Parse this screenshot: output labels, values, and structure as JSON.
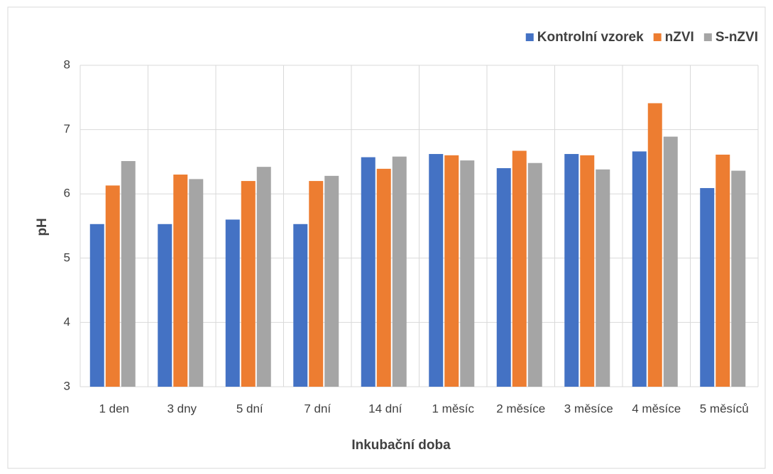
{
  "chart_data": {
    "type": "bar",
    "x_label": "Inkubační doba",
    "y_label": "pH",
    "categories": [
      "1 den",
      "3 dny",
      "5 dní",
      "7 dní",
      "14 dní",
      "1 měsíc",
      "2 měsíce",
      "3 měsíce",
      "4 měsíce",
      "5 měsíců"
    ],
    "series": [
      {
        "name": "Kontrolní vzorek",
        "color": "#4472c4",
        "values": [
          5.53,
          5.53,
          5.6,
          5.53,
          6.57,
          6.62,
          6.4,
          6.62,
          6.66,
          6.09
        ]
      },
      {
        "name": "nZVI",
        "color": "#ed7d31",
        "values": [
          6.13,
          6.3,
          6.2,
          6.2,
          6.39,
          6.6,
          6.67,
          6.6,
          7.41,
          6.61
        ]
      },
      {
        "name": "S-nZVI",
        "color": "#a5a5a5",
        "values": [
          6.51,
          6.23,
          6.42,
          6.28,
          6.58,
          6.52,
          6.48,
          6.38,
          6.89,
          6.36
        ]
      }
    ],
    "ylim": [
      3,
      8
    ],
    "yticks": [
      3,
      4,
      5,
      6,
      7,
      8
    ],
    "grid": true,
    "legend": "top-right"
  }
}
